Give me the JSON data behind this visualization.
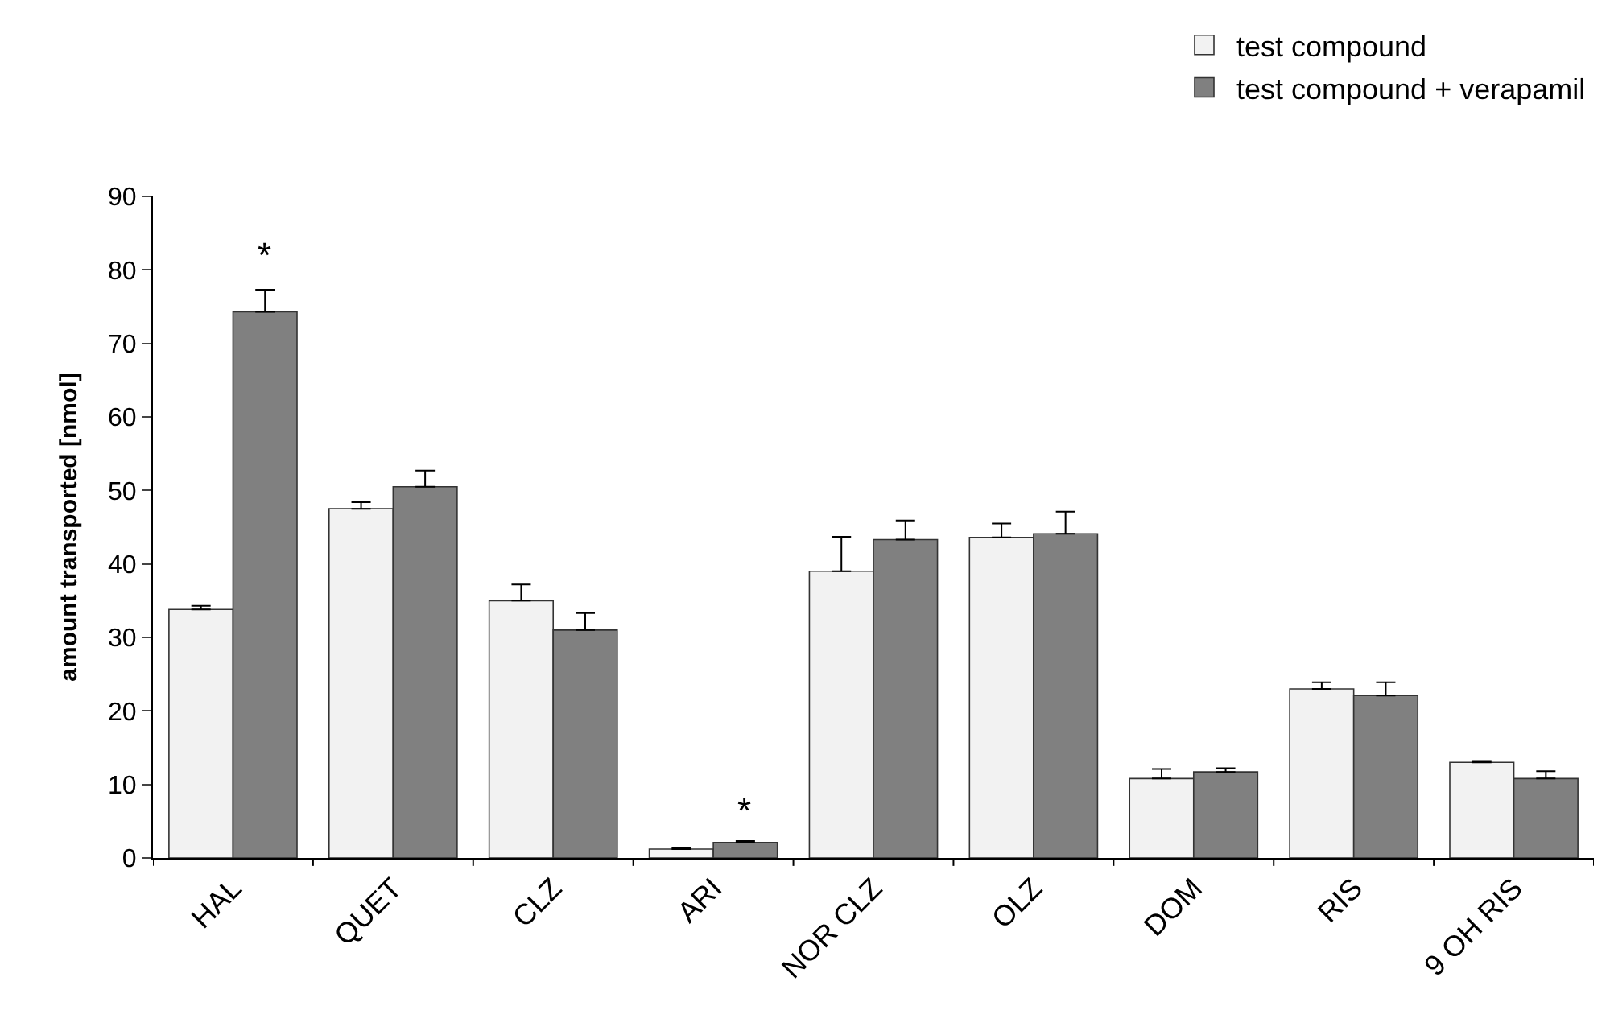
{
  "chart_data": {
    "type": "bar",
    "ylabel": "amount transported [nmol]",
    "categories": [
      "HAL",
      "QUET",
      "CLZ",
      "ARI",
      "NOR CLZ",
      "OLZ",
      "DOM",
      "RIS",
      "9 OH RIS"
    ],
    "series": [
      {
        "name": "test compound",
        "color": "#f2f2f2",
        "values": [
          33.8,
          47.5,
          35.0,
          1.2,
          39.0,
          43.6,
          10.8,
          23.0,
          13.0
        ],
        "errors": [
          [
            33.8,
            34.3
          ],
          [
            47.5,
            48.4
          ],
          [
            35.0,
            37.2
          ],
          [
            1.2,
            1.4
          ],
          [
            39.0,
            43.7
          ],
          [
            43.6,
            45.5
          ],
          [
            10.8,
            12.1
          ],
          [
            23.0,
            23.9
          ],
          [
            13.0,
            13.2
          ]
        ]
      },
      {
        "name": "test compound + verapamil",
        "color": "#808080",
        "values": [
          74.3,
          50.5,
          31.0,
          2.1,
          43.3,
          44.1,
          11.7,
          22.1,
          10.8
        ],
        "errors": [
          [
            74.3,
            77.3
          ],
          [
            50.5,
            52.7
          ],
          [
            31.0,
            33.3
          ],
          [
            2.1,
            2.3
          ],
          [
            43.3,
            45.9
          ],
          [
            44.1,
            47.1
          ],
          [
            11.7,
            12.2
          ],
          [
            22.1,
            23.9
          ],
          [
            10.8,
            11.8
          ]
        ]
      }
    ],
    "annotations": [
      {
        "text": "*",
        "x": "HAL",
        "y": 74.3
      },
      {
        "text": "*",
        "x": "ARI",
        "y": 2.1
      }
    ],
    "ylim": [
      0,
      90
    ],
    "yticks": [
      0,
      10,
      20,
      30,
      40,
      50,
      60,
      70,
      80,
      90
    ],
    "legend": "top right"
  }
}
